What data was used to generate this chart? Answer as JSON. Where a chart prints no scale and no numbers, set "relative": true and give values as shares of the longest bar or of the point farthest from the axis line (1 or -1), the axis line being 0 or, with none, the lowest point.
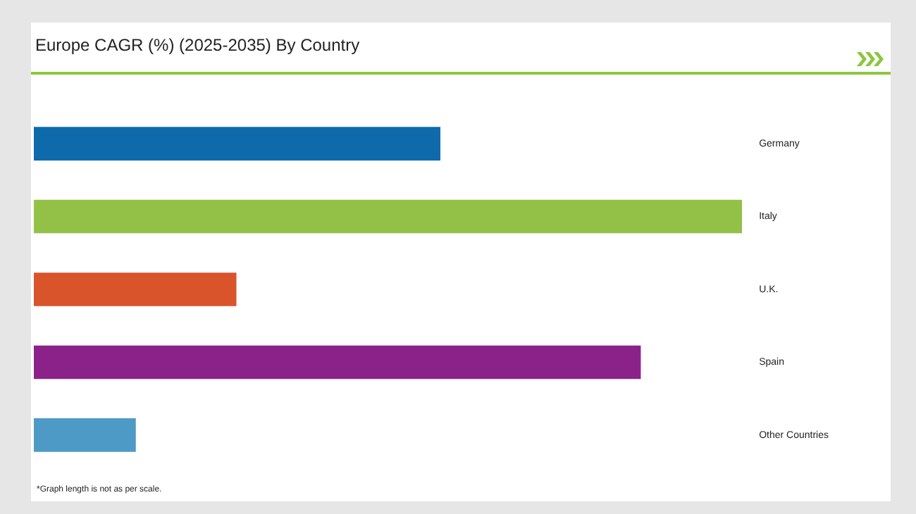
{
  "chart_data": {
    "type": "bar",
    "orientation": "horizontal",
    "relative": true,
    "title": "Europe CAGR (%) (2025-2035) By Country",
    "categories": [
      "Germany",
      "Italy",
      "U.K.",
      "Spain",
      "Other Countries"
    ],
    "values": [
      0.574,
      1,
      0.286,
      0.857,
      0.144
    ],
    "colors": [
      "#0e6aab",
      "#93c147",
      "#d9542b",
      "#8b2289",
      "#4e9ac6"
    ],
    "annotations": [
      "*Graph length is not as per scale."
    ],
    "legend": false
  }
}
